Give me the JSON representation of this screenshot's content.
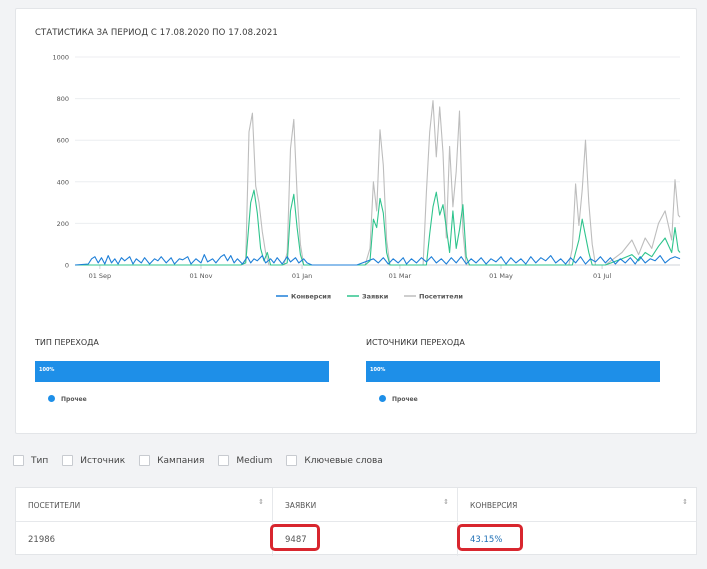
{
  "chart_title": "СТАТИСТИКА ЗА ПЕРИОД С 17.08.2020 ПО 17.08.2021",
  "chart_data": {
    "type": "line",
    "title": "СТАТИСТИКА ЗА ПЕРИОД С 17.08.2020 ПО 17.08.2021",
    "ylim": [
      0,
      1000
    ],
    "yticks": [
      "0",
      "200",
      "400",
      "600",
      "800",
      "1000"
    ],
    "xticks": [
      {
        "label": "01 Sep",
        "day": 15
      },
      {
        "label": "01 Nov",
        "day": 76
      },
      {
        "label": "01 Jan",
        "day": 137
      },
      {
        "label": "01 Mar",
        "day": 196
      },
      {
        "label": "01 May",
        "day": 257
      },
      {
        "label": "01 Jul",
        "day": 318
      }
    ],
    "days_span": 365,
    "series": [
      {
        "name": "Конверсия",
        "color": "#1e7fd8",
        "points": [
          [
            0,
            0
          ],
          [
            8,
            5
          ],
          [
            10,
            30
          ],
          [
            12,
            40
          ],
          [
            14,
            10
          ],
          [
            16,
            35
          ],
          [
            18,
            5
          ],
          [
            20,
            45
          ],
          [
            22,
            10
          ],
          [
            24,
            30
          ],
          [
            26,
            5
          ],
          [
            28,
            35
          ],
          [
            30,
            20
          ],
          [
            33,
            40
          ],
          [
            35,
            5
          ],
          [
            37,
            30
          ],
          [
            40,
            10
          ],
          [
            42,
            35
          ],
          [
            45,
            5
          ],
          [
            48,
            30
          ],
          [
            50,
            20
          ],
          [
            52,
            40
          ],
          [
            55,
            10
          ],
          [
            58,
            35
          ],
          [
            60,
            5
          ],
          [
            63,
            30
          ],
          [
            65,
            25
          ],
          [
            68,
            40
          ],
          [
            70,
            5
          ],
          [
            73,
            30
          ],
          [
            76,
            10
          ],
          [
            78,
            50
          ],
          [
            80,
            15
          ],
          [
            83,
            30
          ],
          [
            85,
            10
          ],
          [
            88,
            40
          ],
          [
            90,
            50
          ],
          [
            92,
            20
          ],
          [
            94,
            45
          ],
          [
            96,
            10
          ],
          [
            98,
            30
          ],
          [
            101,
            5
          ],
          [
            104,
            40
          ],
          [
            106,
            10
          ],
          [
            108,
            30
          ],
          [
            110,
            20
          ],
          [
            113,
            45
          ],
          [
            115,
            10
          ],
          [
            118,
            30
          ],
          [
            120,
            10
          ],
          [
            122,
            35
          ],
          [
            125,
            5
          ],
          [
            128,
            40
          ],
          [
            130,
            15
          ],
          [
            133,
            35
          ],
          [
            135,
            10
          ],
          [
            138,
            30
          ],
          [
            140,
            10
          ],
          [
            143,
            0
          ],
          [
            150,
            0
          ],
          [
            160,
            0
          ],
          [
            170,
            0
          ],
          [
            180,
            30
          ],
          [
            183,
            10
          ],
          [
            186,
            35
          ],
          [
            189,
            5
          ],
          [
            192,
            30
          ],
          [
            195,
            10
          ],
          [
            198,
            35
          ],
          [
            200,
            5
          ],
          [
            203,
            30
          ],
          [
            206,
            10
          ],
          [
            209,
            35
          ],
          [
            212,
            15
          ],
          [
            215,
            40
          ],
          [
            218,
            10
          ],
          [
            221,
            30
          ],
          [
            224,
            5
          ],
          [
            227,
            35
          ],
          [
            230,
            10
          ],
          [
            233,
            40
          ],
          [
            236,
            5
          ],
          [
            239,
            30
          ],
          [
            242,
            10
          ],
          [
            245,
            35
          ],
          [
            248,
            5
          ],
          [
            251,
            30
          ],
          [
            254,
            15
          ],
          [
            257,
            40
          ],
          [
            260,
            5
          ],
          [
            263,
            35
          ],
          [
            266,
            10
          ],
          [
            269,
            30
          ],
          [
            272,
            5
          ],
          [
            275,
            40
          ],
          [
            278,
            10
          ],
          [
            281,
            35
          ],
          [
            284,
            20
          ],
          [
            287,
            45
          ],
          [
            290,
            10
          ],
          [
            293,
            30
          ],
          [
            296,
            5
          ],
          [
            299,
            35
          ],
          [
            302,
            10
          ],
          [
            305,
            40
          ],
          [
            308,
            5
          ],
          [
            311,
            30
          ],
          [
            314,
            15
          ],
          [
            317,
            40
          ],
          [
            320,
            10
          ],
          [
            323,
            35
          ],
          [
            326,
            5
          ],
          [
            329,
            30
          ],
          [
            332,
            10
          ],
          [
            335,
            35
          ],
          [
            338,
            5
          ],
          [
            341,
            40
          ],
          [
            344,
            10
          ],
          [
            347,
            30
          ],
          [
            350,
            20
          ],
          [
            353,
            45
          ],
          [
            356,
            10
          ],
          [
            359,
            30
          ],
          [
            362,
            40
          ],
          [
            365,
            30
          ]
        ]
      },
      {
        "name": "Заявки",
        "color": "#2fc48d",
        "points": [
          [
            0,
            0
          ],
          [
            100,
            0
          ],
          [
            103,
            10
          ],
          [
            106,
            300
          ],
          [
            108,
            360
          ],
          [
            110,
            250
          ],
          [
            112,
            80
          ],
          [
            114,
            20
          ],
          [
            116,
            60
          ],
          [
            118,
            0
          ],
          [
            125,
            0
          ],
          [
            128,
            10
          ],
          [
            130,
            260
          ],
          [
            132,
            340
          ],
          [
            134,
            180
          ],
          [
            136,
            50
          ],
          [
            138,
            0
          ],
          [
            175,
            0
          ],
          [
            178,
            20
          ],
          [
            180,
            220
          ],
          [
            182,
            180
          ],
          [
            184,
            320
          ],
          [
            186,
            250
          ],
          [
            188,
            60
          ],
          [
            190,
            0
          ],
          [
            212,
            0
          ],
          [
            214,
            150
          ],
          [
            216,
            280
          ],
          [
            218,
            350
          ],
          [
            220,
            240
          ],
          [
            222,
            290
          ],
          [
            224,
            180
          ],
          [
            226,
            60
          ],
          [
            228,
            260
          ],
          [
            230,
            80
          ],
          [
            232,
            170
          ],
          [
            234,
            290
          ],
          [
            236,
            40
          ],
          [
            238,
            0
          ],
          [
            300,
            0
          ],
          [
            304,
            120
          ],
          [
            306,
            220
          ],
          [
            308,
            140
          ],
          [
            310,
            60
          ],
          [
            312,
            0
          ],
          [
            320,
            0
          ],
          [
            330,
            30
          ],
          [
            336,
            50
          ],
          [
            340,
            20
          ],
          [
            344,
            60
          ],
          [
            348,
            40
          ],
          [
            352,
            90
          ],
          [
            356,
            130
          ],
          [
            360,
            60
          ],
          [
            362,
            180
          ],
          [
            364,
            70
          ],
          [
            365,
            60
          ]
        ]
      },
      {
        "name": "Посетители",
        "color": "#bdbdbd",
        "points": [
          [
            0,
            0
          ],
          [
            100,
            0
          ],
          [
            103,
            20
          ],
          [
            105,
            640
          ],
          [
            107,
            730
          ],
          [
            109,
            380
          ],
          [
            111,
            300
          ],
          [
            113,
            160
          ],
          [
            115,
            60
          ],
          [
            117,
            0
          ],
          [
            126,
            0
          ],
          [
            128,
            60
          ],
          [
            130,
            560
          ],
          [
            132,
            700
          ],
          [
            134,
            340
          ],
          [
            136,
            100
          ],
          [
            138,
            0
          ],
          [
            175,
            0
          ],
          [
            178,
            80
          ],
          [
            180,
            400
          ],
          [
            182,
            260
          ],
          [
            184,
            650
          ],
          [
            186,
            480
          ],
          [
            188,
            120
          ],
          [
            190,
            0
          ],
          [
            210,
            0
          ],
          [
            212,
            350
          ],
          [
            214,
            640
          ],
          [
            216,
            790
          ],
          [
            218,
            520
          ],
          [
            220,
            760
          ],
          [
            222,
            540
          ],
          [
            224,
            130
          ],
          [
            226,
            570
          ],
          [
            228,
            280
          ],
          [
            230,
            450
          ],
          [
            232,
            740
          ],
          [
            234,
            160
          ],
          [
            236,
            0
          ],
          [
            298,
            0
          ],
          [
            300,
            80
          ],
          [
            302,
            390
          ],
          [
            304,
            190
          ],
          [
            306,
            360
          ],
          [
            308,
            600
          ],
          [
            310,
            300
          ],
          [
            312,
            100
          ],
          [
            314,
            0
          ],
          [
            320,
            0
          ],
          [
            330,
            60
          ],
          [
            336,
            120
          ],
          [
            340,
            50
          ],
          [
            344,
            130
          ],
          [
            348,
            80
          ],
          [
            352,
            200
          ],
          [
            356,
            260
          ],
          [
            360,
            120
          ],
          [
            362,
            410
          ],
          [
            364,
            240
          ],
          [
            365,
            230
          ]
        ]
      }
    ]
  },
  "legend": [
    {
      "label": "Конверсия",
      "color": "#1e7fd8"
    },
    {
      "label": "Заявки",
      "color": "#2fc48d"
    },
    {
      "label": "Посетители",
      "color": "#bdbdbd"
    }
  ],
  "type_section": {
    "title": "ТИП ПЕРЕХОДА",
    "bar_label": "100%",
    "share": 1.0,
    "legend": "Прочее"
  },
  "source_section": {
    "title": "ИСТОЧНИКИ ПЕРЕХОДА",
    "bar_label": "100%",
    "share": 1.0,
    "legend": "Прочее"
  },
  "filters": [
    "Тип",
    "Источник",
    "Кампания",
    "Medium",
    "Ключевые слова"
  ],
  "table": {
    "headers": [
      "ПОСЕТИТЕЛИ",
      "ЗАЯВКИ",
      "КОНВЕРСИЯ"
    ],
    "sort_icon": "⇕",
    "row": [
      "21986",
      "9487",
      "43.15%"
    ]
  },
  "highlight_color": "#d8262e"
}
